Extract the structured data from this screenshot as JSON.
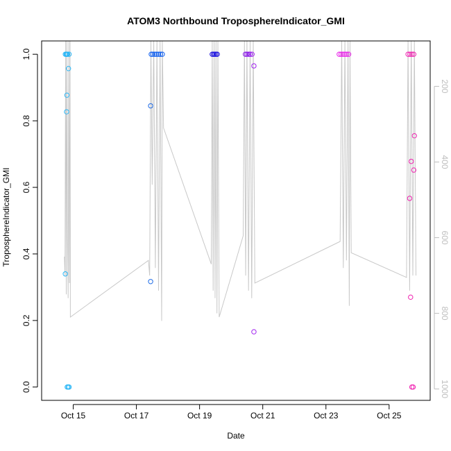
{
  "chart_data": {
    "type": "scatter",
    "title": "ATOM3 Northbound TroposphereIndicator_GMI",
    "xlabel": "Date",
    "ylabel": "TroposphereIndicator_GMI",
    "x_unit": "day of October (decimal)",
    "xlim": [
      14.0,
      26.3
    ],
    "ylim": [
      -0.04,
      1.04
    ],
    "x_ticks": [
      {
        "value": 15,
        "label": "Oct 15"
      },
      {
        "value": 17,
        "label": "Oct 17"
      },
      {
        "value": 19,
        "label": "Oct 19"
      },
      {
        "value": 21,
        "label": "Oct 21"
      },
      {
        "value": 23,
        "label": "Oct 23"
      },
      {
        "value": 25,
        "label": "Oct 25"
      }
    ],
    "y_ticks": [
      0.0,
      0.2,
      0.4,
      0.6,
      0.8,
      1.0
    ],
    "y_tick_labels": [
      "0.0",
      "0.2",
      "0.4",
      "0.6",
      "0.8",
      "1.0"
    ],
    "right_axis": {
      "ticks": [
        200,
        400,
        600,
        800,
        1000
      ],
      "tick_labels": [
        "200",
        "400",
        "600",
        "800",
        "1000"
      ],
      "range_top_to_bottom": [
        80,
        1030
      ],
      "color": "#bebebe"
    },
    "grid": false,
    "legend": "none",
    "series": [
      {
        "values": [
          {
            "x": 14.75,
            "y": 1.0,
            "color": "#29b6f6"
          },
          {
            "x": 14.78,
            "y": 1.0,
            "color": "#29b6f6"
          },
          {
            "x": 14.8,
            "y": 1.0,
            "color": "#29b6f6"
          },
          {
            "x": 14.82,
            "y": 1.0,
            "color": "#29b6f6"
          },
          {
            "x": 14.87,
            "y": 1.0,
            "color": "#29b6f6"
          },
          {
            "x": 14.75,
            "y": 0.34,
            "color": "#29b6f6"
          },
          {
            "x": 14.8,
            "y": 0.877,
            "color": "#29b6f6"
          },
          {
            "x": 14.79,
            "y": 0.827,
            "color": "#29b6f6"
          },
          {
            "x": 14.85,
            "y": 0.957,
            "color": "#29b6f6"
          },
          {
            "x": 14.81,
            "y": 0.0,
            "color": "#29b6f6"
          },
          {
            "x": 14.84,
            "y": 0.0,
            "color": "#29b6f6"
          },
          {
            "x": 14.87,
            "y": 0.0,
            "color": "#29b6f6"
          },
          {
            "x": 17.45,
            "y": 0.845,
            "color": "#1e6be6"
          },
          {
            "x": 17.45,
            "y": 0.317,
            "color": "#1e6be6"
          },
          {
            "x": 17.47,
            "y": 1.0,
            "color": "#0a5cf0"
          },
          {
            "x": 17.52,
            "y": 1.0,
            "color": "#0a5cf0"
          },
          {
            "x": 17.58,
            "y": 1.0,
            "color": "#0a5cf0"
          },
          {
            "x": 17.64,
            "y": 1.0,
            "color": "#0a5cf0"
          },
          {
            "x": 17.7,
            "y": 1.0,
            "color": "#0a5cf0"
          },
          {
            "x": 17.76,
            "y": 1.0,
            "color": "#0a5cf0"
          },
          {
            "x": 17.82,
            "y": 1.0,
            "color": "#0a5cf0"
          },
          {
            "x": 19.4,
            "y": 1.0,
            "color": "#1a10e0"
          },
          {
            "x": 19.44,
            "y": 1.0,
            "color": "#1a10e0"
          },
          {
            "x": 19.48,
            "y": 1.0,
            "color": "#1a10e0"
          },
          {
            "x": 19.52,
            "y": 1.0,
            "color": "#1a10e0"
          },
          {
            "x": 19.56,
            "y": 1.0,
            "color": "#1a10e0"
          },
          {
            "x": 20.45,
            "y": 1.0,
            "color": "#8a18e8"
          },
          {
            "x": 20.5,
            "y": 1.0,
            "color": "#8a18e8"
          },
          {
            "x": 20.55,
            "y": 1.0,
            "color": "#8a18e8"
          },
          {
            "x": 20.6,
            "y": 1.0,
            "color": "#8a18e8"
          },
          {
            "x": 20.66,
            "y": 1.0,
            "color": "#a020f0"
          },
          {
            "x": 20.72,
            "y": 0.965,
            "color": "#a020f0"
          },
          {
            "x": 20.72,
            "y": 0.166,
            "color": "#a020f0"
          },
          {
            "x": 23.42,
            "y": 1.0,
            "color": "#e81ee8"
          },
          {
            "x": 23.48,
            "y": 1.0,
            "color": "#e81ee8"
          },
          {
            "x": 23.54,
            "y": 1.0,
            "color": "#e81ee8"
          },
          {
            "x": 23.6,
            "y": 1.0,
            "color": "#e81ee8"
          },
          {
            "x": 23.66,
            "y": 1.0,
            "color": "#e81ee8"
          },
          {
            "x": 23.72,
            "y": 1.0,
            "color": "#e81ee8"
          },
          {
            "x": 25.6,
            "y": 1.0,
            "color": "#f020b0"
          },
          {
            "x": 25.66,
            "y": 1.0,
            "color": "#f020b0"
          },
          {
            "x": 25.72,
            "y": 1.0,
            "color": "#f020b0"
          },
          {
            "x": 25.78,
            "y": 1.0,
            "color": "#f020b0"
          },
          {
            "x": 25.8,
            "y": 0.755,
            "color": "#f020b0"
          },
          {
            "x": 25.7,
            "y": 0.678,
            "color": "#f020b0"
          },
          {
            "x": 25.78,
            "y": 0.652,
            "color": "#f020b0"
          },
          {
            "x": 25.65,
            "y": 0.567,
            "color": "#f020b0"
          },
          {
            "x": 25.68,
            "y": 0.27,
            "color": "#f020b0"
          },
          {
            "x": 25.72,
            "y": 0.0,
            "color": "#f020b0"
          },
          {
            "x": 25.76,
            "y": 0.0,
            "color": "#f020b0"
          }
        ]
      }
    ],
    "line_series": {
      "axis": "right",
      "color": "#c8c8c8",
      "points": [
        [
          14.72,
          650
        ],
        [
          14.74,
          700
        ],
        [
          14.76,
          80
        ],
        [
          14.78,
          750
        ],
        [
          14.8,
          80
        ],
        [
          14.82,
          600
        ],
        [
          14.84,
          760
        ],
        [
          14.86,
          80
        ],
        [
          14.88,
          720
        ],
        [
          14.9,
          80
        ],
        [
          14.91,
          810
        ],
        [
          17.38,
          660
        ],
        [
          17.42,
          700
        ],
        [
          17.46,
          80
        ],
        [
          17.5,
          460
        ],
        [
          17.55,
          80
        ],
        [
          17.6,
          680
        ],
        [
          17.65,
          80
        ],
        [
          17.7,
          740
        ],
        [
          17.75,
          80
        ],
        [
          17.8,
          820
        ],
        [
          17.82,
          80
        ],
        [
          17.86,
          310
        ],
        [
          19.37,
          670
        ],
        [
          19.4,
          80
        ],
        [
          19.43,
          740
        ],
        [
          19.46,
          80
        ],
        [
          19.49,
          760
        ],
        [
          19.52,
          80
        ],
        [
          19.55,
          800
        ],
        [
          19.58,
          80
        ],
        [
          19.62,
          810
        ],
        [
          20.38,
          595
        ],
        [
          20.42,
          80
        ],
        [
          20.46,
          700
        ],
        [
          20.5,
          80
        ],
        [
          20.55,
          740
        ],
        [
          20.6,
          80
        ],
        [
          20.65,
          760
        ],
        [
          20.7,
          80
        ],
        [
          20.75,
          720
        ],
        [
          23.45,
          610
        ],
        [
          23.5,
          80
        ],
        [
          23.55,
          680
        ],
        [
          23.6,
          80
        ],
        [
          23.65,
          660
        ],
        [
          23.7,
          80
        ],
        [
          23.74,
          780
        ],
        [
          23.76,
          80
        ],
        [
          23.8,
          640
        ],
        [
          25.55,
          705
        ],
        [
          25.6,
          80
        ],
        [
          25.65,
          740
        ],
        [
          25.7,
          80
        ],
        [
          25.75,
          700
        ],
        [
          25.8,
          80
        ],
        [
          25.85,
          700
        ]
      ]
    }
  }
}
